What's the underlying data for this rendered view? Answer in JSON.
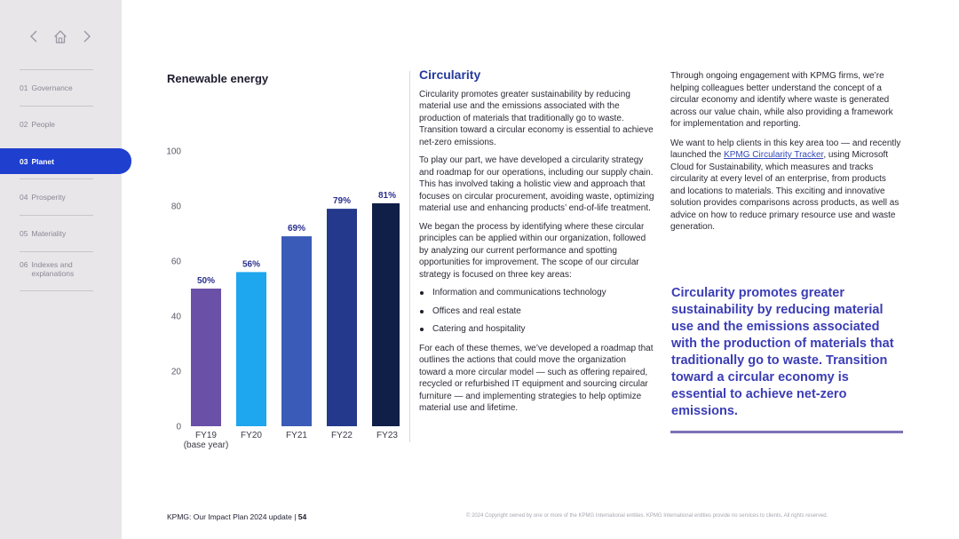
{
  "sidebar": {
    "nav_controls": [
      "chevron-left-icon",
      "home-icon",
      "chevron-right-icon"
    ],
    "items": [
      {
        "num": "01",
        "label": "Governance"
      },
      {
        "num": "02",
        "label": "People"
      },
      {
        "num": "03",
        "label": "Planet"
      },
      {
        "num": "04",
        "label": "Prosperity"
      },
      {
        "num": "05",
        "label": "Materiality"
      },
      {
        "num": "06",
        "label": "Indexes and explanations"
      }
    ],
    "active_index": 2,
    "active_color": "#1f3fcf"
  },
  "chart": {
    "title": "Renewable energy"
  },
  "chart_data": {
    "type": "bar",
    "categories": [
      "FY19",
      "FY20",
      "FY21",
      "FY22",
      "FY23"
    ],
    "category_sublabels": [
      "(base year)",
      "",
      "",
      "",
      ""
    ],
    "values": [
      50,
      56,
      69,
      79,
      81
    ],
    "data_labels": [
      "50%",
      "56%",
      "69%",
      "79%",
      "81%"
    ],
    "bar_colors": [
      "#6a50a6",
      "#1ea6ee",
      "#3a5bb7",
      "#24388c",
      "#0f1f47"
    ],
    "ylim": [
      0,
      100
    ],
    "yticks": [
      0,
      20,
      40,
      60,
      80,
      100
    ],
    "title": "",
    "xlabel": "",
    "ylabel": ""
  },
  "middle": {
    "heading": "Circularity",
    "p1": "Circularity promotes greater sustainability by reducing material use and the emissions associated with the production of materials that traditionally go to waste. Transition toward a circular economy is essential to achieve net-zero emissions.",
    "p2": "To play our part, we have developed a circularity strategy and roadmap for our operations, including our supply chain. This has involved taking a holistic view and approach that focuses on circular procurement, avoiding waste, optimizing material use and enhancing products’ end-of-life treatment.",
    "p3": "We began the process by identifying where these circular principles can be applied within our organization, followed by analyzing our current performance and spotting opportunities for improvement. The scope of our circular strategy is focused on three key areas:",
    "bullets": [
      "Information and communications technology",
      "Offices and real estate",
      "Catering and hospitality"
    ],
    "p4": "For each of these themes, we’ve developed a roadmap that outlines the actions that could move the organization toward a more circular model — such as offering repaired, recycled or refurbished IT equipment and sourcing circular furniture — and implementing strategies to help optimize material use and lifetime."
  },
  "right": {
    "p1": "Through ongoing engagement with KPMG firms, we’re helping colleagues better understand the concept of a circular economy and identify where waste is generated across our value chain, while also providing a framework for implementation and reporting.",
    "p2_before": "We want to help clients in this key area too — and recently launched the ",
    "p2_link": "KPMG Circularity Tracker",
    "p2_after": ", using Microsoft Cloud for Sustainability, which measures and tracks circularity at every level of an enterprise, from products and locations to materials. This exciting and innovative solution provides comparisons across products, as well as advice on how to reduce primary resource use and waste generation.",
    "quote": "Circularity promotes greater sustainability by reducing material use and the emissions associated with the production of materials that traditionally go to waste. Transition toward a circular economy is essential to achieve net-zero emissions."
  },
  "footer": {
    "doc_title": "KPMG: Our Impact Plan 2024 update",
    "separator": "|",
    "page_number": "54",
    "copyright": "© 2024 Copyright owned by one or more of the KPMG International entities. KPMG International entities provide no services to clients. All rights reserved."
  }
}
